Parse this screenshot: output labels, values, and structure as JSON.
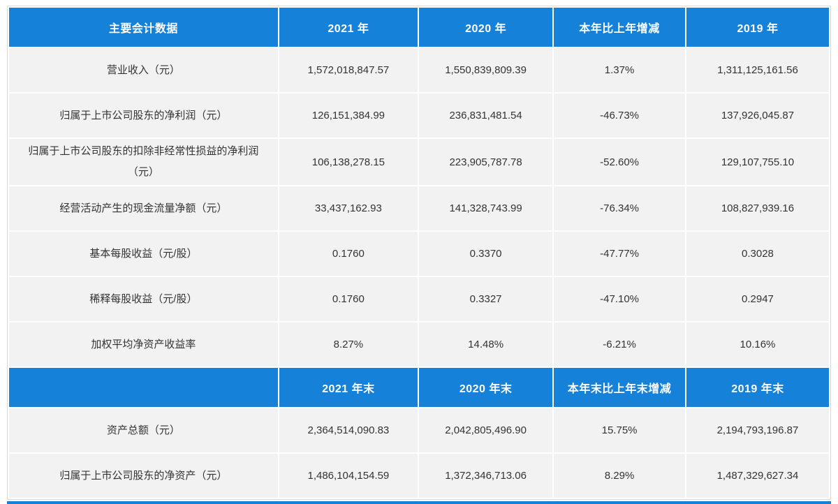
{
  "colors": {
    "header_bg": "#1581d8",
    "header_text": "#ffffff",
    "row_bg": "#f2f2f2",
    "cell_text": "#333333",
    "outer_border": "#d9d9d9",
    "page_bg": "#ffffff"
  },
  "table": {
    "column_widths_pct": [
      33,
      17,
      16.4,
      16.1,
      17.5
    ],
    "sections": [
      {
        "header": [
          "主要会计数据",
          "2021 年",
          "2020 年",
          "本年比上年增减",
          "2019 年"
        ],
        "rows": [
          {
            "label": "营业收入（元）",
            "values": [
              "1,572,018,847.57",
              "1,550,839,809.39",
              "1.37%",
              "1,311,125,161.56"
            ]
          },
          {
            "label": "归属于上市公司股东的净利润（元）",
            "values": [
              "126,151,384.99",
              "236,831,481.54",
              "-46.73%",
              "137,926,045.87"
            ]
          },
          {
            "label": "归属于上市公司股东的扣除非经常性损益的净利润（元）",
            "values": [
              "106,138,278.15",
              "223,905,787.78",
              "-52.60%",
              "129,107,755.10"
            ]
          },
          {
            "label": "经营活动产生的现金流量净额（元）",
            "values": [
              "33,437,162.93",
              "141,328,743.99",
              "-76.34%",
              "108,827,939.16"
            ]
          },
          {
            "label": "基本每股收益（元/股）",
            "values": [
              "0.1760",
              "0.3370",
              "-47.77%",
              "0.3028"
            ]
          },
          {
            "label": "稀释每股收益（元/股）",
            "values": [
              "0.1760",
              "0.3327",
              "-47.10%",
              "0.2947"
            ]
          },
          {
            "label": "加权平均净资产收益率",
            "values": [
              "8.27%",
              "14.48%",
              "-6.21%",
              "10.16%"
            ]
          }
        ]
      },
      {
        "header": [
          "",
          "2021 年末",
          "2020 年末",
          "本年末比上年末增减",
          "2019 年末"
        ],
        "rows": [
          {
            "label": "资产总额（元）",
            "values": [
              "2,364,514,090.83",
              "2,042,805,496.90",
              "15.75%",
              "2,194,793,196.87"
            ]
          },
          {
            "label": "归属于上市公司股东的净资产（元）",
            "values": [
              "1,486,104,154.59",
              "1,372,346,713.06",
              "8.29%",
              "1,487,329,627.34"
            ]
          }
        ]
      }
    ]
  }
}
